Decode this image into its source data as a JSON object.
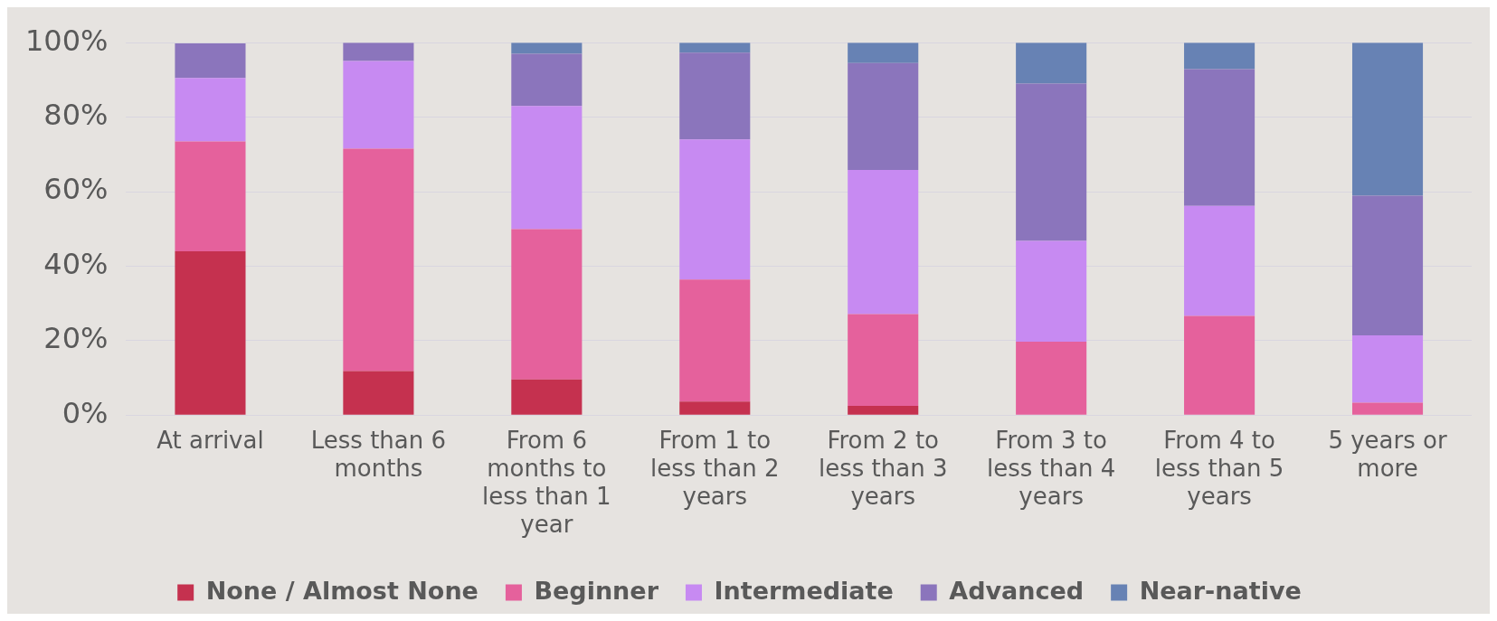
{
  "chart_data": {
    "type": "bar",
    "stacked": true,
    "categories": [
      "At arrival",
      "Less than 6 months",
      "From 6 months to less than 1 year",
      "From 1 to less than 2 years",
      "From 2 to less than 3 years",
      "From 3 to less than 4 years",
      "From 4 to less than 5 years",
      "5 years or more"
    ],
    "series": [
      {
        "name": "None / Almost None",
        "color": "#c5314f",
        "values": [
          44,
          11.8,
          9.6,
          3.6,
          2.5,
          0,
          0,
          0
        ]
      },
      {
        "name": "Beginner",
        "color": "#e5619c",
        "values": [
          29.5,
          59.7,
          40.3,
          32.8,
          24.6,
          19.7,
          26.6,
          3.3
        ]
      },
      {
        "name": "Intermediate",
        "color": "#c78af2",
        "values": [
          17,
          23.6,
          33.1,
          37.6,
          38.7,
          27.1,
          29.6,
          18.1
        ]
      },
      {
        "name": "Advanced",
        "color": "#8b75bc",
        "values": [
          9.3,
          4.9,
          14,
          23.3,
          28.7,
          42.2,
          36.7,
          37.5
        ]
      },
      {
        "name": "Near-native",
        "color": "#6782b4",
        "values": [
          null,
          0,
          3,
          2.7,
          5.5,
          11,
          7.1,
          41.1
        ]
      }
    ],
    "ylim": [
      0,
      100
    ],
    "yticks": [
      {
        "value": 0,
        "label": "0%"
      },
      {
        "value": 20,
        "label": "20%"
      },
      {
        "value": 40,
        "label": "40%"
      },
      {
        "value": 60,
        "label": "60%"
      },
      {
        "value": 80,
        "label": "80%"
      },
      {
        "value": 100,
        "label": "100%"
      }
    ],
    "grid": "y",
    "legend": "bottom"
  }
}
